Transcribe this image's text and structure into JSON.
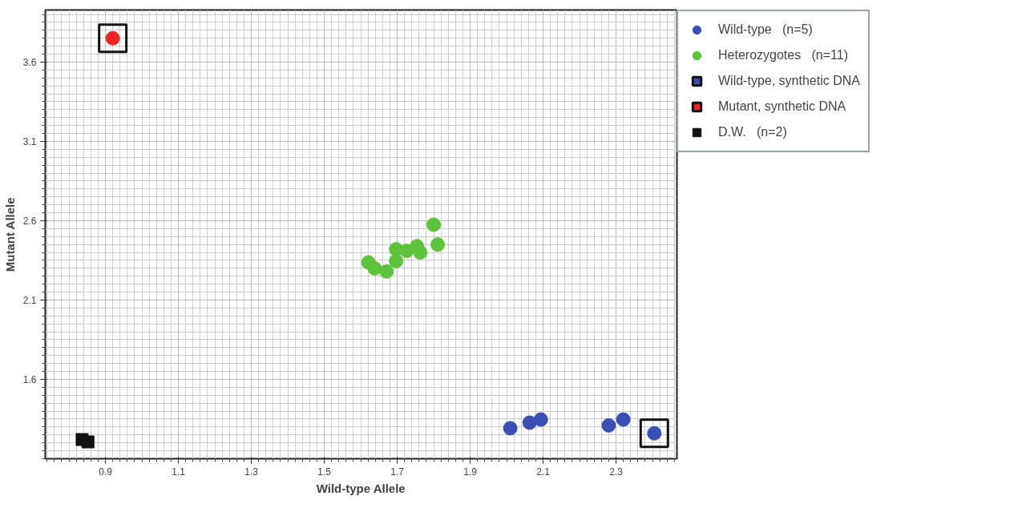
{
  "chart_data": {
    "type": "scatter",
    "xlabel": "Wild-type Allele",
    "ylabel": "Mutant Allele",
    "xlim": [
      0.735,
      2.467
    ],
    "ylim": [
      1.1,
      3.928
    ],
    "xticks": [
      0.9,
      1.1,
      1.3,
      1.5,
      1.7,
      1.9,
      2.1,
      2.3
    ],
    "yticks": [
      1.6,
      2.1,
      2.6,
      3.1,
      3.6
    ],
    "grid": true,
    "legend": "right",
    "series": [
      {
        "name": "Wild-type   (n=5)",
        "color": "#3a4fb5",
        "marker": "circle",
        "x": [
          2.01,
          2.063,
          2.094,
          2.28,
          2.32
        ],
        "values": [
          1.292,
          1.327,
          1.347,
          1.31,
          1.347
        ]
      },
      {
        "name": "Heterozygotes   (n=11)",
        "color": "#5cc33a",
        "marker": "circle",
        "x": [
          1.621,
          1.638,
          1.671,
          1.697,
          1.697,
          1.726,
          1.754,
          1.763,
          1.8,
          1.811
        ],
        "values": [
          2.337,
          2.3,
          2.28,
          2.346,
          2.42,
          2.41,
          2.44,
          2.4,
          2.575,
          2.45
        ]
      },
      {
        "name": "Wild-type, synthetic DNA",
        "color": "#3a4fb5",
        "marker": "circle",
        "x": [
          2.405
        ],
        "values": [
          1.26
        ]
      },
      {
        "name": "Mutant, synthetic DNA",
        "color": "#ee2222",
        "marker": "circle",
        "x": [
          0.92
        ],
        "values": [
          3.75
        ]
      },
      {
        "name": "D.W.   (n=2)",
        "color": "#111111",
        "marker": "square",
        "x": [
          0.836,
          0.852
        ],
        "values": [
          1.221,
          1.206
        ]
      }
    ]
  }
}
